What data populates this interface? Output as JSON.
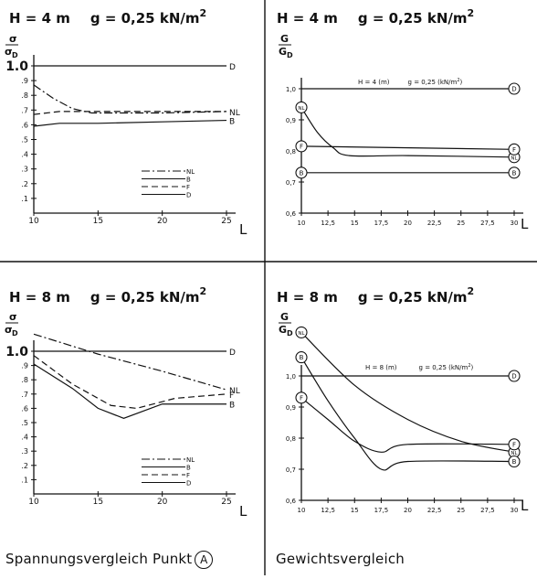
{
  "panels": {
    "tl": {
      "title_h": "H = 4 m",
      "title_g": "g = 0,25 kN/m",
      "title_sup": "2",
      "ylabel_num": "σ",
      "ylabel_den": "σ",
      "ylabel_sub": "D",
      "xlabel": "L"
    },
    "tr": {
      "title_h": "H = 4 m",
      "title_g": "g = 0,25 kN/m",
      "title_sup": "2",
      "ylabel_num": "G",
      "ylabel_den": "G",
      "ylabel_sub": "D",
      "xlabel": "L",
      "inner_h": "H = 4 (m)",
      "inner_g": "g = 0,25 (kN/m",
      "inner_sup": "2",
      "inner_close": ")"
    },
    "bl": {
      "title_h": "H = 8 m",
      "title_g": "g = 0,25 kN/m",
      "title_sup": "2",
      "ylabel_num": "σ",
      "ylabel_den": "σ",
      "ylabel_sub": "D",
      "xlabel": "L"
    },
    "br": {
      "title_h": "H = 8 m",
      "title_g": "g = 0,25 kN/m",
      "title_sup": "2",
      "ylabel_num": "G",
      "ylabel_den": "G",
      "ylabel_sub": "D",
      "xlabel": "L",
      "inner_h": "H = 8 (m)",
      "inner_g": "g = 0,25 (kN/m",
      "inner_sup": "2",
      "inner_close": ")"
    }
  },
  "captions": {
    "left": "Spannungsvergleich Punkt",
    "left_circle": "A",
    "right": "Gewichtsvergleich"
  },
  "chart_data": [
    {
      "id": "tl",
      "type": "line",
      "xlim": [
        10,
        25
      ],
      "ylim": [
        0,
        1.0
      ],
      "xticks": [
        10,
        15,
        20,
        25
      ],
      "xtick_labels": [
        "10",
        "15",
        "20",
        "25"
      ],
      "yticks": [
        0.1,
        0.2,
        0.3,
        0.4,
        0.5,
        0.6,
        0.7,
        0.8,
        0.9,
        1.0
      ],
      "ytick_labels": [
        ".1",
        ".2",
        ".3",
        ".4",
        ".5",
        ".6",
        ".7",
        ".8",
        ".9",
        "1.0"
      ],
      "legend": [
        "NL",
        "B",
        "F",
        "D"
      ],
      "series": [
        {
          "name": "D",
          "x": [
            10,
            25
          ],
          "y": [
            1.0,
            1.0
          ],
          "end_label": "D"
        },
        {
          "name": "NL",
          "x": [
            10,
            11.5,
            13,
            14.5,
            17,
            20,
            25
          ],
          "y": [
            0.87,
            0.78,
            0.71,
            0.68,
            0.68,
            0.68,
            0.69
          ],
          "end_label": "NL"
        },
        {
          "name": "F",
          "x": [
            10,
            12,
            14,
            17,
            20,
            25
          ],
          "y": [
            0.67,
            0.69,
            0.69,
            0.69,
            0.69,
            0.69
          ]
        },
        {
          "name": "B",
          "x": [
            10,
            12,
            15,
            20,
            25
          ],
          "y": [
            0.59,
            0.61,
            0.61,
            0.62,
            0.63
          ],
          "end_label": "B"
        }
      ]
    },
    {
      "id": "tr",
      "type": "line",
      "xlim": [
        10,
        30
      ],
      "ylim": [
        0.6,
        1.0
      ],
      "xticks": [
        10,
        12.5,
        15,
        17.5,
        20,
        22.5,
        25,
        27.5,
        30
      ],
      "xtick_labels": [
        "10",
        "12,5",
        "15",
        "17,5",
        "20",
        "22,5",
        "25",
        "27,5",
        "30"
      ],
      "yticks": [
        0.6,
        0.7,
        0.8,
        0.9,
        1.0
      ],
      "ytick_labels": [
        "0,6",
        "0,7",
        "0,8",
        "0,9",
        "1,0"
      ],
      "series": [
        {
          "name": "D",
          "x": [
            10,
            30
          ],
          "y": [
            1.0,
            1.0
          ],
          "end_marker": "D"
        },
        {
          "name": "NL",
          "x": [
            10,
            11.5,
            13,
            14.5,
            20,
            30
          ],
          "y": [
            0.94,
            0.86,
            0.81,
            0.785,
            0.785,
            0.78
          ],
          "start_marker": "NL",
          "end_marker": "NL"
        },
        {
          "name": "F",
          "x": [
            10,
            30
          ],
          "y": [
            0.815,
            0.805
          ],
          "start_marker": "F",
          "end_marker": "F"
        },
        {
          "name": "B",
          "x": [
            10,
            30
          ],
          "y": [
            0.73,
            0.73
          ],
          "start_marker": "B",
          "end_marker": "B"
        }
      ]
    },
    {
      "id": "bl",
      "type": "line",
      "xlim": [
        10,
        25
      ],
      "ylim": [
        0,
        1.0
      ],
      "xticks": [
        10,
        15,
        20,
        25
      ],
      "xtick_labels": [
        "10",
        "15",
        "20",
        "25"
      ],
      "yticks": [
        0.1,
        0.2,
        0.3,
        0.4,
        0.5,
        0.6,
        0.7,
        0.8,
        0.9,
        1.0
      ],
      "ytick_labels": [
        ".1",
        ".2",
        ".3",
        ".4",
        ".5",
        ".6",
        ".7",
        ".8",
        ".9",
        "1.0"
      ],
      "legend": [
        "NL",
        "B",
        "F",
        "D"
      ],
      "series": [
        {
          "name": "D",
          "x": [
            10,
            25
          ],
          "y": [
            1.0,
            1.0
          ],
          "end_label": "D"
        },
        {
          "name": "NL",
          "x": [
            10,
            15,
            20,
            25
          ],
          "y": [
            1.12,
            0.98,
            0.86,
            0.73
          ],
          "end_label": "NL"
        },
        {
          "name": "F",
          "x": [
            10,
            13,
            16,
            18,
            21,
            25
          ],
          "y": [
            0.97,
            0.77,
            0.62,
            0.6,
            0.67,
            0.7
          ],
          "end_label": "F"
        },
        {
          "name": "B",
          "x": [
            10,
            13,
            15,
            17,
            20,
            25
          ],
          "y": [
            0.91,
            0.74,
            0.6,
            0.53,
            0.63,
            0.63
          ],
          "end_label": "B"
        }
      ]
    },
    {
      "id": "br",
      "type": "line",
      "xlim": [
        10,
        30
      ],
      "ylim": [
        0.6,
        1.0
      ],
      "xticks": [
        10,
        12.5,
        15,
        17.5,
        20,
        22.5,
        25,
        27.5,
        30
      ],
      "xtick_labels": [
        "10",
        "12,5",
        "15",
        "17,5",
        "20",
        "22,5",
        "25",
        "27,5",
        "30"
      ],
      "yticks": [
        0.6,
        0.7,
        0.8,
        0.9,
        1.0
      ],
      "ytick_labels": [
        "0,6",
        "0,7",
        "0,8",
        "0,9",
        "1,0"
      ],
      "series": [
        {
          "name": "D",
          "x": [
            10,
            30
          ],
          "y": [
            1.0,
            1.0
          ],
          "end_marker": "D"
        },
        {
          "name": "NL",
          "x": [
            10,
            15,
            20,
            25,
            30
          ],
          "y": [
            1.14,
            0.97,
            0.86,
            0.79,
            0.755
          ],
          "start_marker": "NL",
          "end_marker": "NL"
        },
        {
          "name": "B",
          "x": [
            10,
            12.5,
            15,
            17.5,
            20,
            30
          ],
          "y": [
            1.06,
            0.92,
            0.8,
            0.7,
            0.725,
            0.725
          ],
          "start_marker": "B",
          "end_marker": "B"
        },
        {
          "name": "F",
          "x": [
            10,
            12.5,
            15,
            17.5,
            20,
            30
          ],
          "y": [
            0.93,
            0.86,
            0.79,
            0.755,
            0.78,
            0.78
          ],
          "start_marker": "F",
          "end_marker": "F"
        }
      ]
    }
  ]
}
